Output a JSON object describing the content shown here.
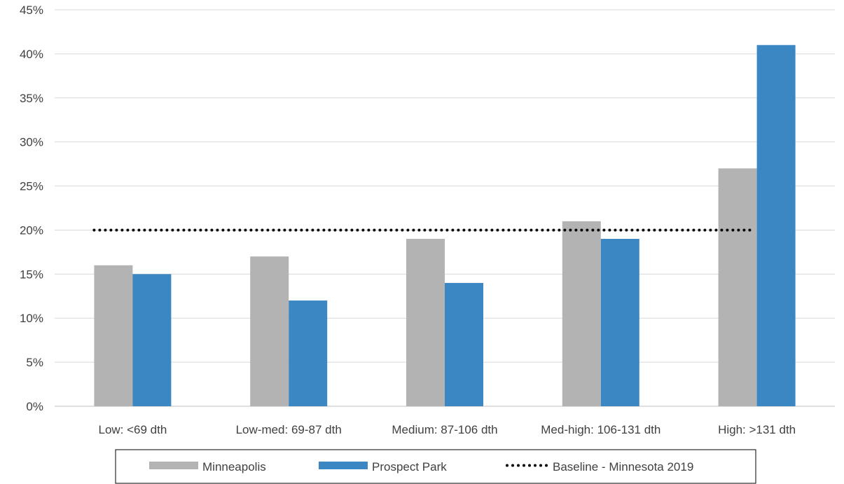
{
  "chart_data": {
    "type": "bar",
    "categories": [
      "Low: <69 dth",
      "Low-med: 69-87 dth",
      "Medium: 87-106 dth",
      "Med-high: 106-131 dth",
      "High: >131 dth"
    ],
    "series": [
      {
        "name": "Minneapolis",
        "values": [
          16,
          17,
          19,
          21,
          27
        ],
        "color": "#b3b3b3"
      },
      {
        "name": "Prospect Park",
        "values": [
          15,
          12,
          14,
          19,
          41
        ],
        "color": "#3a87c3"
      }
    ],
    "baseline": {
      "name": "Baseline - Minnesota 2019",
      "value": 20,
      "color": "#000000",
      "style": "dotted"
    },
    "ylim": [
      0,
      45
    ],
    "yticks": [
      "0%",
      "5%",
      "10%",
      "15%",
      "20%",
      "25%",
      "30%",
      "35%",
      "40%",
      "45%"
    ],
    "grid": true,
    "legend_position": "bottom",
    "title": "",
    "xlabel": "",
    "ylabel": ""
  }
}
